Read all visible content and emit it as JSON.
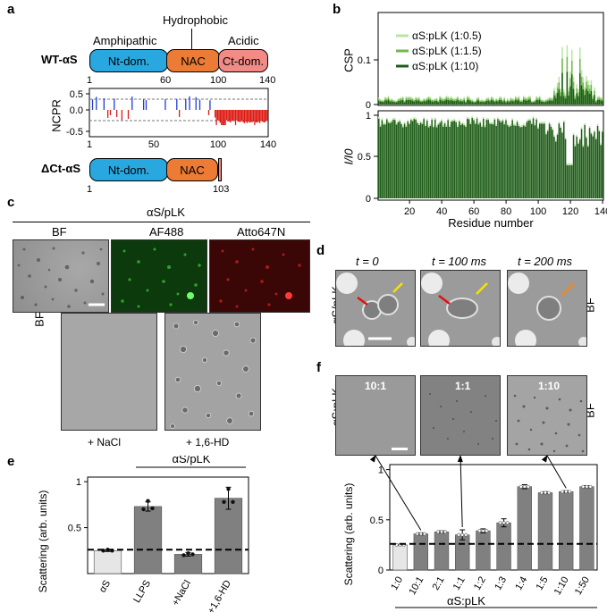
{
  "panels": {
    "a": "a",
    "b": "b",
    "c": "c",
    "d": "d",
    "e": "e",
    "f": "f"
  },
  "colors": {
    "nterm": "#29a8e0",
    "nac": "#ec7b35",
    "cterm": "#f28b86",
    "pos": "#1f3bd6",
    "neg": "#dd1a12",
    "csp1": "#b8e6a0",
    "csp2": "#72b84f",
    "csp3": "#1f5d18",
    "bar": "#808080",
    "bar_light": "#e6e6e6"
  },
  "a": {
    "hydrophobic": "Hydrophobic",
    "amphipathic": "Amphipathic",
    "acidic": "Acidic",
    "wt_label": "WT-αS",
    "nt": "Nt-dom.",
    "nac": "NAC",
    "ct": "Ct-dom.",
    "ticks_top": [
      "1",
      "60",
      "100",
      "140"
    ],
    "ncpr_label": "NCPR",
    "ncpr_ticks": [
      "0.5",
      "0.0",
      "-0.5"
    ],
    "ncpr_x": [
      "1",
      "50",
      "100",
      "140"
    ],
    "dct_label": "ΔCt-αS",
    "ticks_bottom": [
      "1",
      "103"
    ]
  },
  "b": {
    "csp_label": "CSP",
    "csp_ticks": [
      "0.1",
      "0"
    ],
    "legend": [
      "αS:pLK (1:0.5)",
      "αS:pLK (1:1.5)",
      "αS:pLK (1:10)"
    ],
    "i_label": "I/I0",
    "i_ticks": [
      "1",
      "0.5",
      "0"
    ],
    "x_ticks": [
      "20",
      "40",
      "60",
      "80",
      "100",
      "120",
      "140"
    ],
    "xlabel": "Residue number"
  },
  "c": {
    "header": "αS/pLK",
    "bf": "BF",
    "af488": "AF488",
    "atto": "Atto647N",
    "bf_side": "BF",
    "nacl": "+ NaCl",
    "hd": "+ 1,6-HD"
  },
  "d": {
    "t0": "t = 0",
    "t100": "t = 100 ms",
    "t200": "t = 200 ms",
    "side": "αS/pLK",
    "bf": "BF"
  },
  "chart_data": [
    {
      "type": "bar",
      "title": "e",
      "categories": [
        "αS",
        "LLPS",
        "+NaCl",
        "+1,6-HD"
      ],
      "values": [
        0.25,
        0.73,
        0.21,
        0.82
      ],
      "errors": [
        0.01,
        0.05,
        0.02,
        0.12
      ],
      "points": [
        [
          0.25,
          0.26,
          0.25
        ],
        [
          0.7,
          0.79,
          0.71
        ],
        [
          0.2,
          0.22,
          0.21
        ],
        [
          0.78,
          0.92,
          0.78
        ]
      ],
      "baseline": 0.26,
      "ylabel": "Scattering (arb. units)",
      "ylim": [
        0,
        1.05
      ],
      "yticks": [
        "0.5",
        "1"
      ],
      "group_label": "αS/pLK"
    },
    {
      "type": "bar",
      "title": "f",
      "categories": [
        "1:0",
        "10:1",
        "2:1",
        "1:1",
        "1:2",
        "1:3",
        "1:4",
        "1:5",
        "1:10",
        "1:50"
      ],
      "values": [
        0.25,
        0.36,
        0.38,
        0.35,
        0.39,
        0.47,
        0.83,
        0.77,
        0.78,
        0.83
      ],
      "errors": [
        0.005,
        0.01,
        0.01,
        0.05,
        0.02,
        0.04,
        0.02,
        0.01,
        0.01,
        0.01
      ],
      "baseline": 0.26,
      "ylabel": "Scattering (arb. units)",
      "ylim": [
        0,
        1.05
      ],
      "yticks": [
        "0",
        "0.5",
        "1"
      ],
      "xlabel": "αS:pLK",
      "image_labels": [
        "10:1",
        "1:1",
        "1:10"
      ],
      "side": "αS:pLK",
      "bf": "BF"
    }
  ]
}
